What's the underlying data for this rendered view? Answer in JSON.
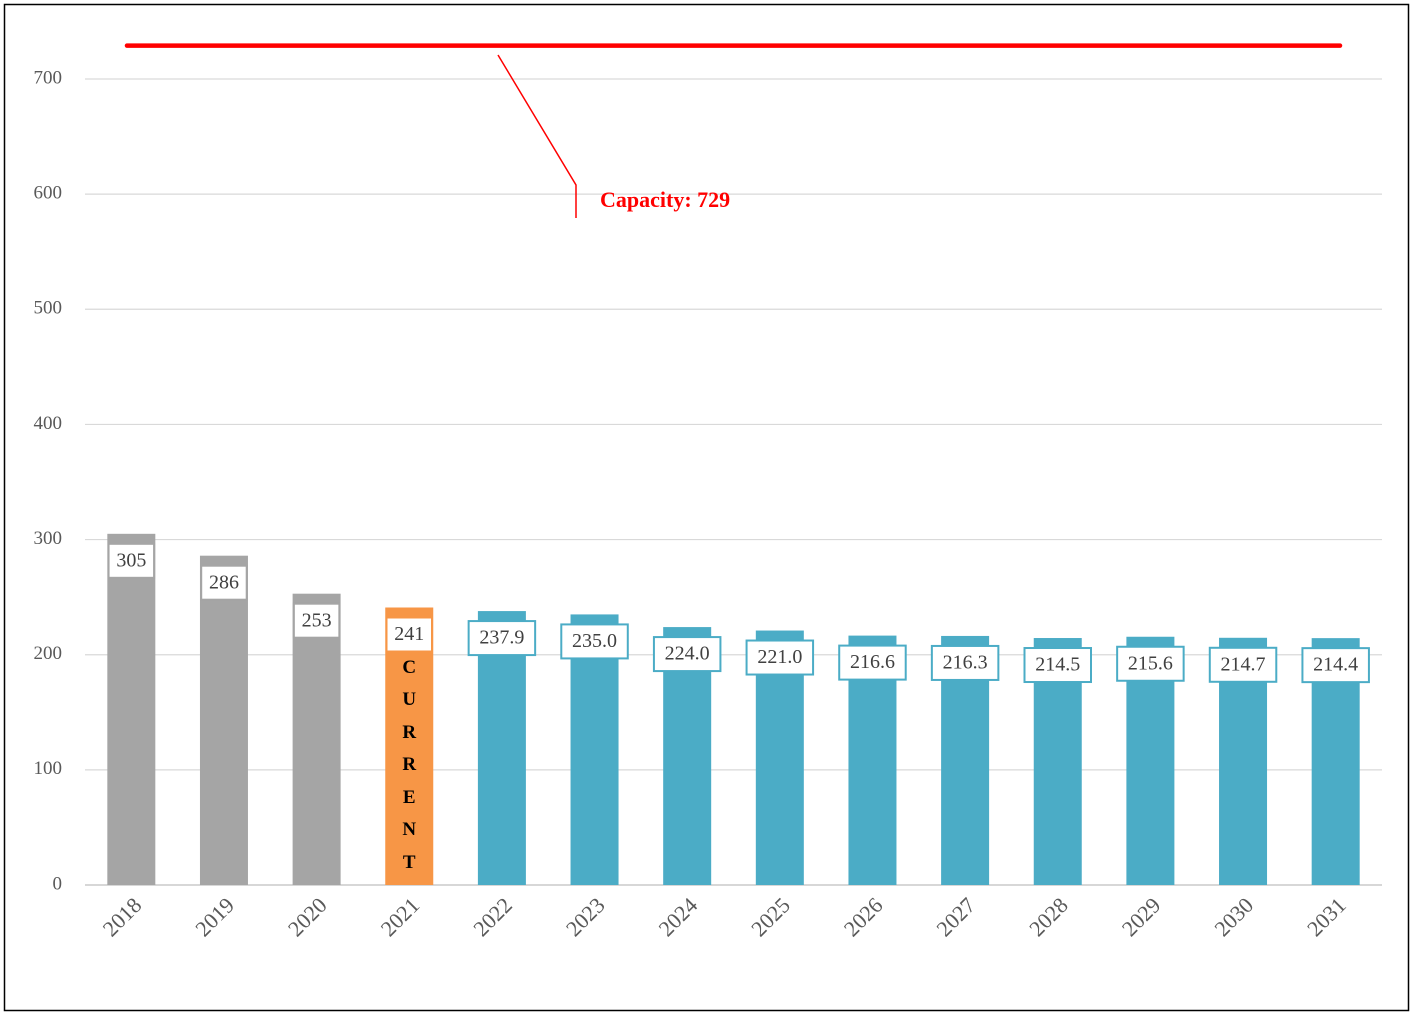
{
  "chart_data": {
    "type": "bar",
    "categories": [
      "2018",
      "2019",
      "2020",
      "2021",
      "2022",
      "2023",
      "2024",
      "2025",
      "2026",
      "2027",
      "2028",
      "2029",
      "2030",
      "2031"
    ],
    "values": [
      305,
      286,
      253,
      241,
      237.9,
      235.0,
      224.0,
      221.0,
      216.6,
      216.3,
      214.5,
      215.6,
      214.7,
      214.4
    ],
    "value_labels": [
      "305",
      "286",
      "253",
      "241",
      "237.9",
      "235.0",
      "224.0",
      "221.0",
      "216.6",
      "216.3",
      "214.5",
      "215.6",
      "214.7",
      "214.4"
    ],
    "colors": [
      "#a5a5a5",
      "#a5a5a5",
      "#a5a5a5",
      "#f79646",
      "#4bacc6",
      "#4bacc6",
      "#4bacc6",
      "#4bacc6",
      "#4bacc6",
      "#4bacc6",
      "#4bacc6",
      "#4bacc6",
      "#4bacc6",
      "#4bacc6"
    ],
    "current_label": "CURRENT",
    "reference_line": {
      "value": 729,
      "label": "Capacity: 729",
      "color": "#ff0000"
    },
    "ylim": [
      0,
      760
    ],
    "yticks": [
      0,
      100,
      200,
      300,
      400,
      500,
      600,
      700
    ],
    "grid": true
  }
}
